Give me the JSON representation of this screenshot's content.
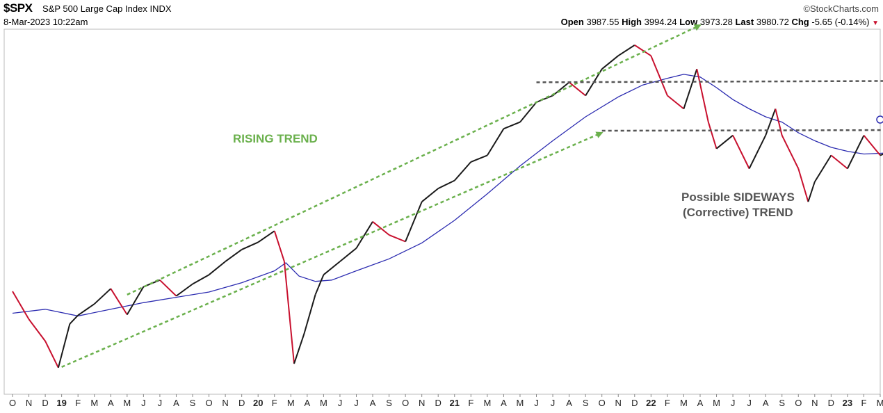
{
  "header": {
    "symbol": "$SPX",
    "name": "S&P 500 Large Cap Index",
    "exchange": "INDX",
    "date": "8-Mar-2023 10:22am",
    "brand": "©StockCharts.com",
    "quote": {
      "open_label": "Open",
      "open": "3987.55",
      "high_label": "High",
      "high": "3994.24",
      "low_label": "Low",
      "low": "3973.28",
      "last_label": "Last",
      "last": "3980.72",
      "chg_label": "Chg",
      "chg": "-5.65 (-0.14%)",
      "chg_arrow": "▼"
    }
  },
  "chart_data": {
    "type": "line",
    "x_ticks": [
      "O",
      "N",
      "D",
      "19",
      "F",
      "M",
      "A",
      "M",
      "J",
      "J",
      "A",
      "S",
      "O",
      "N",
      "D",
      "20",
      "F",
      "M",
      "A",
      "M",
      "J",
      "J",
      "A",
      "S",
      "O",
      "N",
      "D",
      "21",
      "F",
      "M",
      "A",
      "M",
      "J",
      "J",
      "A",
      "S",
      "O",
      "N",
      "D",
      "22",
      "F",
      "M",
      "A",
      "M",
      "J",
      "J",
      "A",
      "S",
      "O",
      "N",
      "D",
      "23",
      "F",
      "M"
    ],
    "x_tick_bold": [
      "19",
      "20",
      "21",
      "22",
      "23"
    ],
    "price": [
      [
        0,
        2925
      ],
      [
        1,
        2715
      ],
      [
        2,
        2550
      ],
      [
        2.8,
        2350
      ],
      [
        3.5,
        2680
      ],
      [
        4,
        2745
      ],
      [
        5,
        2830
      ],
      [
        6,
        2945
      ],
      [
        7,
        2750
      ],
      [
        8,
        2960
      ],
      [
        9,
        3010
      ],
      [
        10,
        2890
      ],
      [
        11,
        2980
      ],
      [
        12,
        3050
      ],
      [
        13,
        3150
      ],
      [
        14,
        3240
      ],
      [
        15,
        3295
      ],
      [
        16,
        3380
      ],
      [
        16.6,
        3150
      ],
      [
        17.2,
        2380
      ],
      [
        17.8,
        2600
      ],
      [
        18.5,
        2900
      ],
      [
        19,
        3050
      ],
      [
        20,
        3150
      ],
      [
        21,
        3250
      ],
      [
        22,
        3450
      ],
      [
        23,
        3350
      ],
      [
        24,
        3300
      ],
      [
        25,
        3600
      ],
      [
        26,
        3700
      ],
      [
        27,
        3760
      ],
      [
        28,
        3900
      ],
      [
        29,
        3950
      ],
      [
        30,
        4150
      ],
      [
        31,
        4200
      ],
      [
        32,
        4350
      ],
      [
        33,
        4400
      ],
      [
        34,
        4500
      ],
      [
        35,
        4400
      ],
      [
        36,
        4600
      ],
      [
        37,
        4700
      ],
      [
        38,
        4780
      ],
      [
        39,
        4700
      ],
      [
        40,
        4400
      ],
      [
        41,
        4300
      ],
      [
        41.8,
        4600
      ],
      [
        42.5,
        4200
      ],
      [
        43,
        4000
      ],
      [
        44,
        4100
      ],
      [
        45,
        3850
      ],
      [
        46,
        4100
      ],
      [
        46.6,
        4300
      ],
      [
        47,
        4100
      ],
      [
        48,
        3850
      ],
      [
        48.6,
        3600
      ],
      [
        49,
        3750
      ],
      [
        50,
        3950
      ],
      [
        51,
        3850
      ],
      [
        52,
        4100
      ],
      [
        53,
        3950
      ],
      [
        53.6,
        3980
      ]
    ],
    "moving_average": [
      [
        0,
        2760
      ],
      [
        2,
        2790
      ],
      [
        4,
        2740
      ],
      [
        6,
        2790
      ],
      [
        8,
        2840
      ],
      [
        10,
        2880
      ],
      [
        12,
        2920
      ],
      [
        14,
        2990
      ],
      [
        16,
        3080
      ],
      [
        16.7,
        3140
      ],
      [
        17.5,
        3040
      ],
      [
        18.5,
        3000
      ],
      [
        19.5,
        3010
      ],
      [
        21,
        3080
      ],
      [
        23,
        3170
      ],
      [
        25,
        3290
      ],
      [
        27,
        3460
      ],
      [
        29,
        3660
      ],
      [
        31,
        3870
      ],
      [
        33,
        4060
      ],
      [
        35,
        4240
      ],
      [
        37,
        4390
      ],
      [
        38.5,
        4480
      ],
      [
        40,
        4530
      ],
      [
        41,
        4560
      ],
      [
        42,
        4540
      ],
      [
        43,
        4460
      ],
      [
        44,
        4370
      ],
      [
        45,
        4300
      ],
      [
        46,
        4240
      ],
      [
        47,
        4200
      ],
      [
        48,
        4120
      ],
      [
        49,
        4060
      ],
      [
        50,
        4010
      ],
      [
        51,
        3980
      ],
      [
        52,
        3960
      ],
      [
        53,
        3965
      ],
      [
        53.6,
        3970
      ]
    ],
    "rising_trend_upper": [
      [
        7,
        2900
      ],
      [
        42,
        4930
      ]
    ],
    "rising_trend_lower": [
      [
        3,
        2355
      ],
      [
        36,
        4120
      ]
    ],
    "sideways_upper": [
      [
        32,
        4500
      ],
      [
        53.8,
        4510
      ]
    ],
    "sideways_lower": [
      [
        36,
        4135
      ],
      [
        53.8,
        4140
      ]
    ],
    "y_min": 2150,
    "y_max": 4900,
    "annotations": {
      "rising": "RISING TREND",
      "sideways_line1": "Possible SIDEWAYS",
      "sideways_line2": "(Corrective) TREND"
    },
    "colors": {
      "price": "#1a1a1a",
      "price_down": "#c8102e",
      "moving_average": "#2b2bb0",
      "rising_trend": "#6ab04c",
      "sideways": "#555555",
      "rising_text": "#6ab04c",
      "sideways_text": "#555555"
    }
  }
}
